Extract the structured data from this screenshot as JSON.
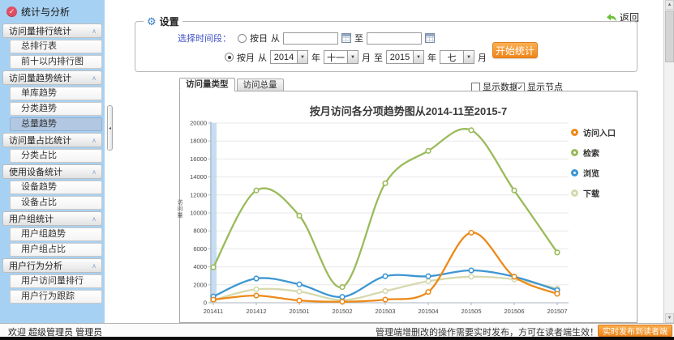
{
  "app": {
    "title": "统计与分析",
    "return_label": "返回",
    "welcome": "欢迎 超级管理员 管理员",
    "footer_notice": "管理端增删改的操作需要实时发布，方可在读者端生效！",
    "publish_button": "实时发布到读者端"
  },
  "icons": {
    "check": "✓",
    "gear": "⚙",
    "chevron_up": "∧",
    "collapse_left": "◂",
    "scroll_up": "▲",
    "scroll_down": "▼",
    "dropdown": "▼"
  },
  "sidebar": {
    "groups": [
      {
        "label": "访问量排行统计",
        "items": [
          "总排行表",
          "前十以内排行图"
        ]
      },
      {
        "label": "访问量趋势统计",
        "items": [
          "单库趋势",
          "分类趋势",
          "总量趋势"
        ],
        "selected": "总量趋势"
      },
      {
        "label": "访问量占比统计",
        "items": [
          "分类占比"
        ]
      },
      {
        "label": "使用设备统计",
        "items": [
          "设备趋势",
          "设备占比"
        ]
      },
      {
        "label": "用户组统计",
        "items": [
          "用户组趋势",
          "用户组占比"
        ]
      },
      {
        "label": "用户行为分析",
        "items": [
          "用户访问量排行",
          "用户行为跟踪"
        ]
      }
    ]
  },
  "settings": {
    "legend": "设置",
    "time_label": "选择时间段：",
    "by_day": {
      "label": "按日",
      "from_label": "从",
      "to_label": "至",
      "from_value": "",
      "to_value": "",
      "checked": false
    },
    "by_month": {
      "label": "按月",
      "from_label": "从",
      "to_label": "至",
      "year_label": "年",
      "month_label": "月",
      "from_year": "2014",
      "from_month": "十一",
      "to_year": "2015",
      "to_month": "七",
      "checked": true
    },
    "start_button": "开始统计"
  },
  "tabs": [
    {
      "label": "访问量类型",
      "active": true
    },
    {
      "label": "访问总量",
      "active": false
    }
  ],
  "options": {
    "show_data": {
      "label": "显示数据",
      "checked": false
    },
    "show_nodes": {
      "label": "显示节点",
      "checked": true
    }
  },
  "chart_data": {
    "type": "line",
    "title": "按月访问各分项趋势图从2014-11至2015-7",
    "ylabel": "访问量",
    "categories": [
      "201411",
      "201412",
      "201501",
      "201502",
      "201503",
      "201504",
      "201505",
      "201506",
      "201507"
    ],
    "ylim": [
      0,
      20000
    ],
    "ytick_step": 2000,
    "grid": true,
    "legend_position": "right",
    "highlight_category": "201411",
    "highlight_color": "#BDD7EE",
    "series": [
      {
        "name": "访问入口",
        "color": "#ED8A19",
        "values": [
          350,
          800,
          250,
          120,
          350,
          1200,
          7800,
          2900,
          1000
        ]
      },
      {
        "name": "检索",
        "color": "#9ABB5A",
        "values": [
          3950,
          12500,
          9700,
          1750,
          13300,
          16900,
          19200,
          12500,
          5600
        ]
      },
      {
        "name": "浏览",
        "color": "#3E96D2",
        "values": [
          700,
          2700,
          2050,
          650,
          2950,
          2950,
          3600,
          2900,
          1400
        ]
      },
      {
        "name": "下载",
        "color": "#D6D9AD",
        "values": [
          300,
          1500,
          1250,
          300,
          1300,
          2400,
          2900,
          2600,
          1600
        ]
      }
    ]
  }
}
